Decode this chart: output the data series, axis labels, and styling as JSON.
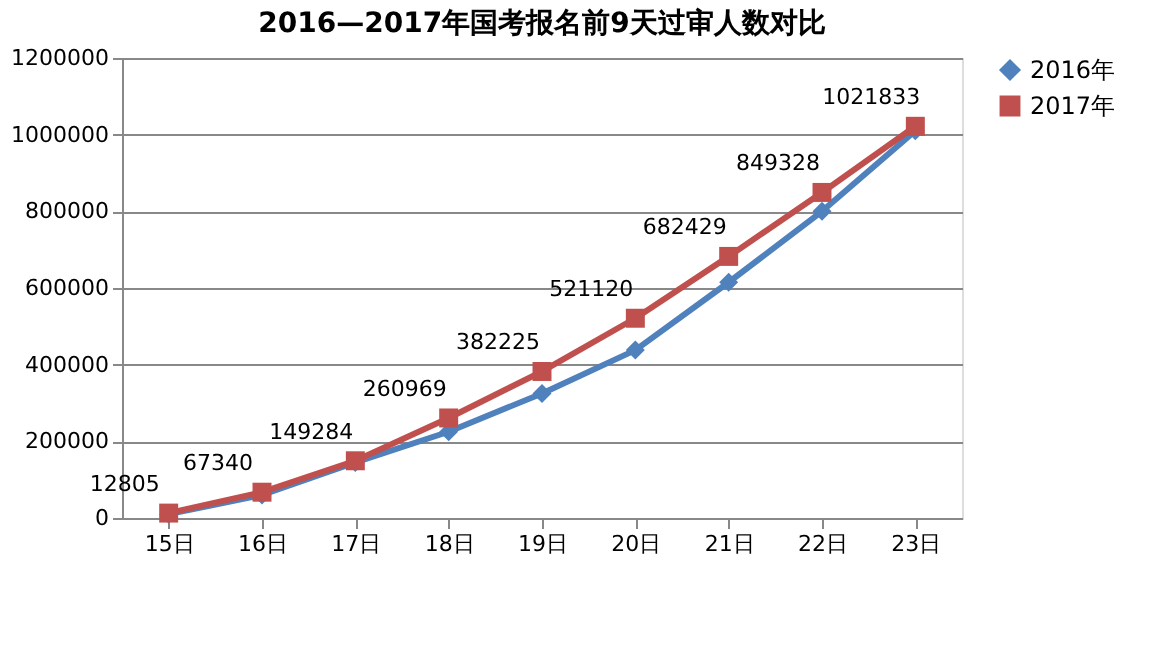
{
  "chart_data": {
    "type": "line",
    "title": "2016—2017年国考报名前9天过审人数对比",
    "categories": [
      "15日",
      "16日",
      "17日",
      "18日",
      "19日",
      "20日",
      "21日",
      "22日",
      "23日"
    ],
    "series": [
      {
        "name": "2016年",
        "color": "#4f81bd",
        "marker": "diamond",
        "values": [
          10000,
          60000,
          145000,
          225000,
          325000,
          438000,
          615000,
          800000,
          1010000
        ]
      },
      {
        "name": "2017年",
        "color": "#c0504d",
        "marker": "square",
        "values": [
          12805,
          67340,
          149284,
          260969,
          382225,
          521120,
          682429,
          849328,
          1021833
        ],
        "value_labels": [
          "12805",
          "67340",
          "149284",
          "260969",
          "382225",
          "521120",
          "682429",
          "849328",
          "1021833"
        ]
      }
    ],
    "ylim": [
      0,
      1200000
    ],
    "yticks": [
      0,
      200000,
      400000,
      600000,
      800000,
      1000000,
      1200000
    ],
    "grid": "y",
    "legend": "right",
    "line_style": "solid"
  }
}
